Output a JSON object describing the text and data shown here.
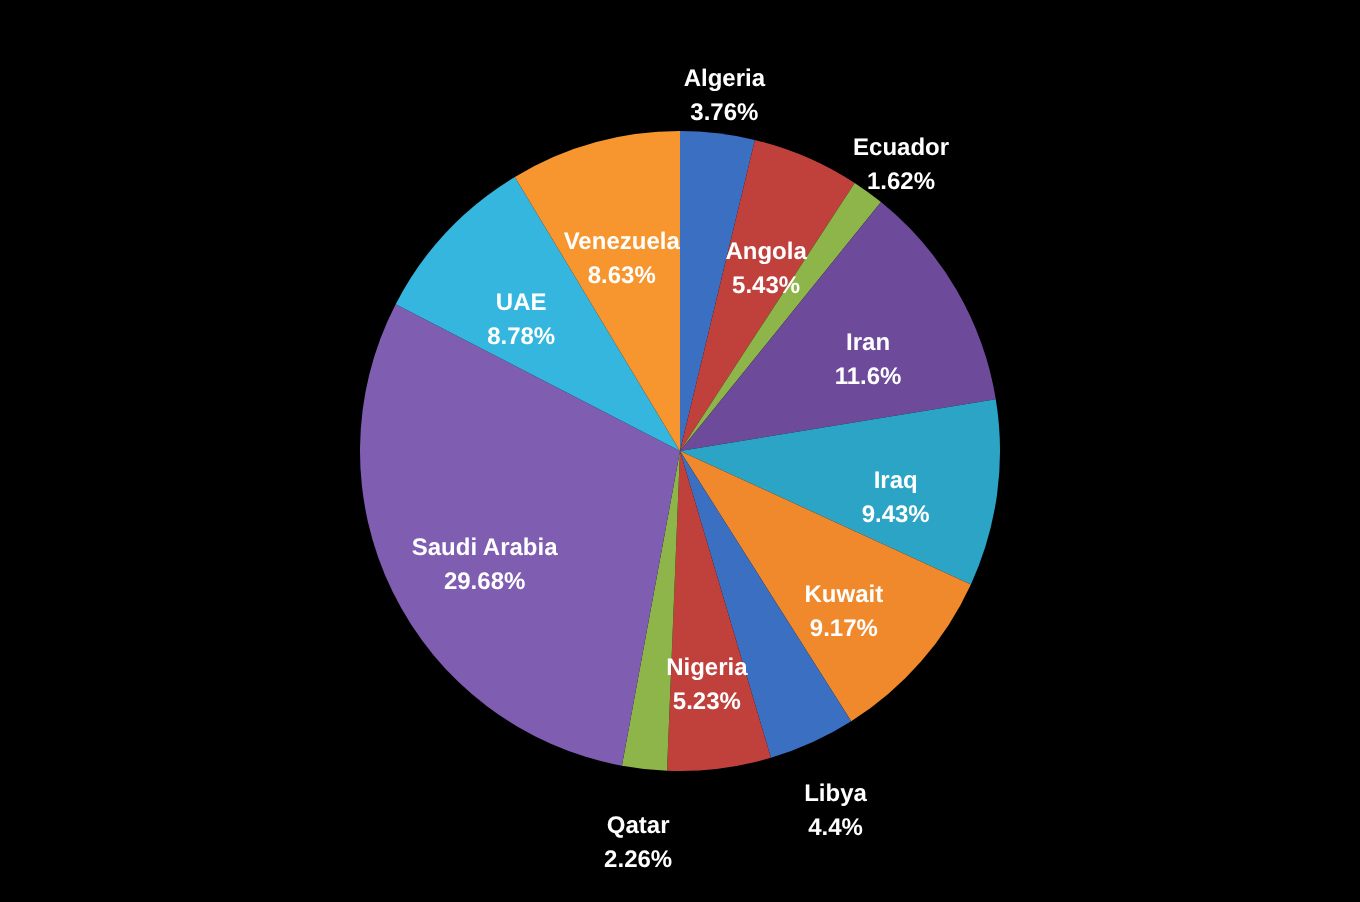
{
  "chart_data": {
    "type": "pie",
    "categories": [
      "Algeria",
      "Angola",
      "Ecuador",
      "Iran",
      "Iraq",
      "Kuwait",
      "Libya",
      "Nigeria",
      "Qatar",
      "Saudi Arabia",
      "UAE",
      "Venezuela"
    ],
    "values": [
      3.76,
      5.43,
      1.62,
      11.6,
      9.43,
      9.17,
      4.4,
      5.23,
      2.26,
      29.68,
      8.78,
      8.63
    ],
    "value_labels": [
      "3.76%",
      "5.43%",
      "1.62%",
      "11.6%",
      "9.43%",
      "9.17%",
      "4.4%",
      "5.23%",
      "2.26%",
      "29.68%",
      "8.78%",
      "8.63%"
    ],
    "colors": [
      "#3b6fc1",
      "#c0403c",
      "#8db54a",
      "#6e4a9b",
      "#2ca4c6",
      "#f0892c",
      "#3b6fc1",
      "#c0403c",
      "#8db54a",
      "#7f5eb2",
      "#34b6de",
      "#f7962f"
    ]
  }
}
